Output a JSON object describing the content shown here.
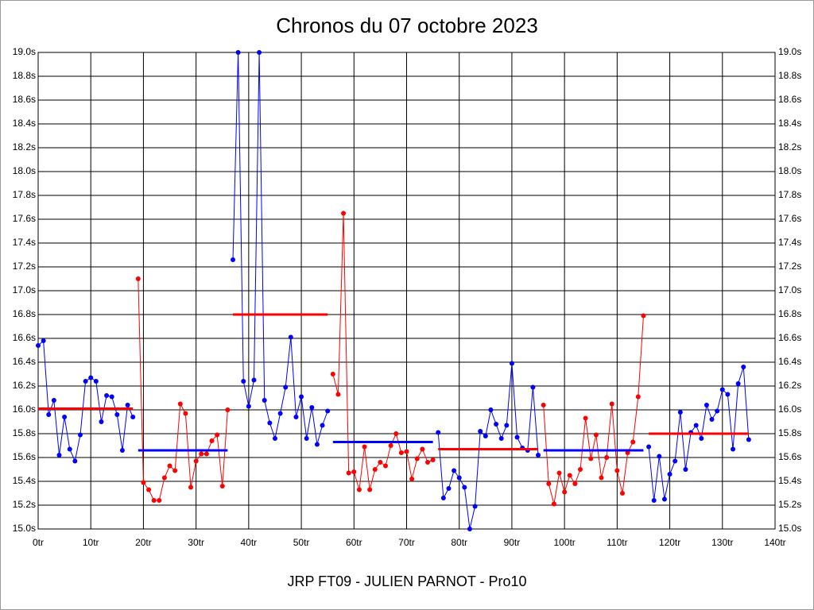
{
  "chart_data": {
    "type": "line",
    "title": "Chronos du 07 octobre 2023",
    "x_label": "JRP FT09 - JULIEN PARNOT - Pro10",
    "xlim": [
      0,
      140
    ],
    "xticks": [
      {
        "value": 0,
        "label": "0tr"
      },
      {
        "value": 10,
        "label": "10tr"
      },
      {
        "value": 20,
        "label": "20tr"
      },
      {
        "value": 30,
        "label": "30tr"
      },
      {
        "value": 40,
        "label": "40tr"
      },
      {
        "value": 50,
        "label": "50tr"
      },
      {
        "value": 60,
        "label": "60tr"
      },
      {
        "value": 70,
        "label": "70tr"
      },
      {
        "value": 80,
        "label": "80tr"
      },
      {
        "value": 90,
        "label": "90tr"
      },
      {
        "value": 100,
        "label": "100tr"
      },
      {
        "value": 110,
        "label": "110tr"
      },
      {
        "value": 120,
        "label": "120tr"
      },
      {
        "value": 130,
        "label": "130tr"
      },
      {
        "value": 140,
        "label": "140tr"
      }
    ],
    "ylim": [
      15.0,
      19.0
    ],
    "yticks": [
      {
        "value": 15.0,
        "label": "15.0s"
      },
      {
        "value": 15.2,
        "label": "15.2s"
      },
      {
        "value": 15.4,
        "label": "15.4s"
      },
      {
        "value": 15.6,
        "label": "15.6s"
      },
      {
        "value": 15.8,
        "label": "15.8s"
      },
      {
        "value": 16.0,
        "label": "16.0s"
      },
      {
        "value": 16.2,
        "label": "16.2s"
      },
      {
        "value": 16.4,
        "label": "16.4s"
      },
      {
        "value": 16.6,
        "label": "16.6s"
      },
      {
        "value": 16.8,
        "label": "16.8s"
      },
      {
        "value": 17.0,
        "label": "17.0s"
      },
      {
        "value": 17.2,
        "label": "17.2s"
      },
      {
        "value": 17.4,
        "label": "17.4s"
      },
      {
        "value": 17.6,
        "label": "17.6s"
      },
      {
        "value": 17.8,
        "label": "17.8s"
      },
      {
        "value": 18.0,
        "label": "18.0s"
      },
      {
        "value": 18.2,
        "label": "18.2s"
      },
      {
        "value": 18.4,
        "label": "18.4s"
      },
      {
        "value": 18.6,
        "label": "18.6s"
      },
      {
        "value": 18.8,
        "label": "18.8s"
      },
      {
        "value": 19.0,
        "label": "19.0s"
      }
    ],
    "grid": true,
    "series": [
      {
        "color": "#0000ff",
        "x": [
          0,
          1,
          2,
          3,
          4,
          5,
          6,
          7,
          8,
          9,
          10,
          11,
          12,
          13,
          14,
          15,
          16,
          17,
          18
        ],
        "values": [
          16.54,
          16.58,
          15.96,
          16.08,
          15.62,
          15.94,
          15.67,
          15.57,
          15.79,
          16.24,
          16.27,
          16.24,
          15.9,
          16.12,
          16.11,
          15.96,
          15.66,
          16.04,
          15.94
        ]
      },
      {
        "color": "#ff0000",
        "x": [
          19,
          20,
          21,
          22,
          23,
          24,
          25,
          26,
          27,
          28,
          29,
          30,
          31,
          32,
          33,
          34,
          35,
          36
        ],
        "values": [
          17.1,
          15.39,
          15.33,
          15.24,
          15.24,
          15.43,
          15.53,
          15.49,
          16.05,
          15.97,
          15.35,
          15.57,
          15.63,
          15.63,
          15.74,
          15.79,
          15.36,
          16.0
        ]
      },
      {
        "color": "#0000ff",
        "x": [
          37,
          38,
          39,
          40,
          41,
          42,
          43,
          44,
          45,
          46,
          47,
          48,
          49,
          50,
          51,
          52,
          53,
          54,
          55
        ],
        "values": [
          17.26,
          19.0,
          16.24,
          16.03,
          16.25,
          19.0,
          16.08,
          15.89,
          15.76,
          15.97,
          16.19,
          16.61,
          15.94,
          16.11,
          15.76,
          16.02,
          15.71,
          15.87,
          15.99
        ]
      },
      {
        "color": "#ff0000",
        "x": [
          56,
          57,
          58,
          59,
          60,
          61,
          62,
          63,
          64,
          65,
          66,
          67,
          68,
          69,
          70,
          71,
          72,
          73,
          74,
          75
        ],
        "values": [
          16.3,
          16.13,
          17.65,
          15.47,
          15.48,
          15.33,
          15.69,
          15.33,
          15.5,
          15.56,
          15.53,
          15.7,
          15.8,
          15.64,
          15.65,
          15.42,
          15.59,
          15.67,
          15.56,
          15.58
        ]
      },
      {
        "color": "#0000ff",
        "x": [
          76,
          77,
          78,
          79,
          80,
          81,
          82,
          83,
          84,
          85,
          86,
          87,
          88,
          89,
          90,
          91,
          92,
          93,
          94,
          95
        ],
        "values": [
          15.81,
          15.26,
          15.34,
          15.49,
          15.43,
          15.35,
          15.0,
          15.19,
          15.82,
          15.78,
          16.0,
          15.88,
          15.76,
          15.87,
          16.39,
          15.77,
          15.68,
          15.66,
          16.19,
          15.62
        ]
      },
      {
        "color": "#ff0000",
        "x": [
          96,
          97,
          98,
          99,
          100,
          101,
          102,
          103,
          104,
          105,
          106,
          107,
          108,
          109,
          110,
          111,
          112,
          113,
          114,
          115
        ],
        "values": [
          16.04,
          15.38,
          15.21,
          15.47,
          15.31,
          15.45,
          15.38,
          15.5,
          15.93,
          15.59,
          15.79,
          15.43,
          15.6,
          16.05,
          15.49,
          15.3,
          15.64,
          15.73,
          16.11,
          16.79
        ]
      },
      {
        "color": "#0000ff",
        "x": [
          116,
          117,
          118,
          119,
          120,
          121,
          122,
          123,
          124,
          125,
          126,
          127,
          128,
          129,
          130,
          131,
          132,
          133,
          134,
          135
        ],
        "values": [
          15.69,
          15.24,
          15.61,
          15.25,
          15.46,
          15.57,
          15.98,
          15.5,
          15.81,
          15.87,
          15.76,
          16.04,
          15.92,
          15.99,
          16.17,
          16.13,
          15.67,
          16.22,
          16.36,
          15.75
        ]
      }
    ],
    "mean_lines": [
      {
        "color": "#ff0000",
        "x": [
          0,
          18
        ],
        "value": 16.01
      },
      {
        "color": "#0000ff",
        "x": [
          19,
          36
        ],
        "value": 15.66
      },
      {
        "color": "#ff0000",
        "x": [
          37,
          55
        ],
        "value": 16.8
      },
      {
        "color": "#0000ff",
        "x": [
          56,
          75
        ],
        "value": 15.73
      },
      {
        "color": "#ff0000",
        "x": [
          76,
          95
        ],
        "value": 15.67
      },
      {
        "color": "#0000ff",
        "x": [
          96,
          115
        ],
        "value": 15.66
      },
      {
        "color": "#ff0000",
        "x": [
          116,
          135
        ],
        "value": 15.8
      }
    ]
  }
}
